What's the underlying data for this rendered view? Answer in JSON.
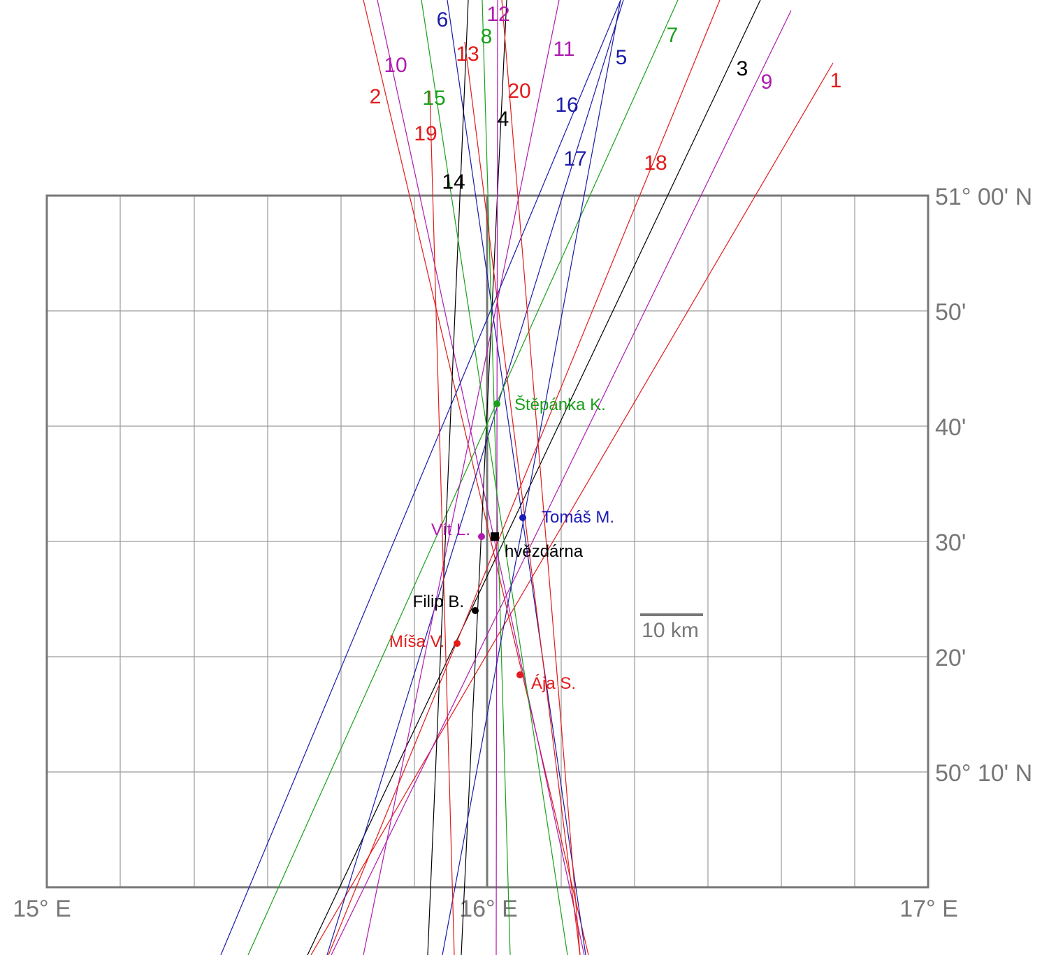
{
  "axes": {
    "lon_labels": [
      "15° E",
      "16° E",
      "17° E"
    ],
    "lat_labels": [
      "51° 00' N",
      "50'",
      "40'",
      "30'",
      "20'",
      "50° 10' N"
    ],
    "lon_range": [
      15.0,
      17.0
    ],
    "lat_range": [
      50.0,
      51.0
    ],
    "grid": true
  },
  "scale_bar": {
    "label": "10 km",
    "length_km": 10,
    "color": "#777777"
  },
  "lines": [
    {
      "id": 1,
      "label": "1",
      "color": "#e21b1b"
    },
    {
      "id": 2,
      "label": "2",
      "color": "#e21b1b"
    },
    {
      "id": 3,
      "label": "3",
      "color": "#000000"
    },
    {
      "id": 4,
      "label": "4",
      "color": "#000000"
    },
    {
      "id": 5,
      "label": "5",
      "color": "#1a1aa8"
    },
    {
      "id": 6,
      "label": "6",
      "color": "#1a1aa8"
    },
    {
      "id": 7,
      "label": "7",
      "color": "#1aa01a"
    },
    {
      "id": 8,
      "label": "8",
      "color": "#1aa01a"
    },
    {
      "id": 9,
      "label": "9",
      "color": "#b01ab0"
    },
    {
      "id": 10,
      "label": "10",
      "color": "#b01ab0"
    },
    {
      "id": 11,
      "label": "11",
      "color": "#b01ab0"
    },
    {
      "id": 12,
      "label": "12",
      "color": "#b01ab0"
    },
    {
      "id": 13,
      "label": "13",
      "color": "#e21b1b"
    },
    {
      "id": 14,
      "label": "14",
      "color": "#000000"
    },
    {
      "id": 15,
      "label": "15",
      "color": "#1aa01a"
    },
    {
      "id": 16,
      "label": "16",
      "color": "#1a1aa8"
    },
    {
      "id": 17,
      "label": "17",
      "color": "#1a1aa8"
    },
    {
      "id": 18,
      "label": "18",
      "color": "#e21b1b"
    },
    {
      "id": 19,
      "label": "19",
      "color": "#e21b1b"
    },
    {
      "id": 20,
      "label": "20",
      "color": "#e21b1b"
    }
  ],
  "observatory": {
    "label": "hvězdárna",
    "lon": 16.02,
    "lat": 50.502,
    "color": "#000000"
  },
  "observers": [
    {
      "name": "Štěpánka K.",
      "lon": 16.025,
      "lat": 50.699,
      "color": "#1aa01a"
    },
    {
      "name": "Tomáš M.",
      "lon": 16.083,
      "lat": 50.536,
      "color": "#1a1ab8"
    },
    {
      "name": "Vít L.",
      "lon": 15.99,
      "lat": 50.507,
      "color": "#b01ab0"
    },
    {
      "name": "Filip B.",
      "lon": 15.975,
      "lat": 50.4,
      "color": "#000000"
    },
    {
      "name": "Míša V.",
      "lon": 15.93,
      "lat": 50.355,
      "color": "#e21b1b"
    },
    {
      "name": "Ája S.",
      "lon": 16.076,
      "lat": 50.31,
      "color": "#e21b1b"
    }
  ]
}
